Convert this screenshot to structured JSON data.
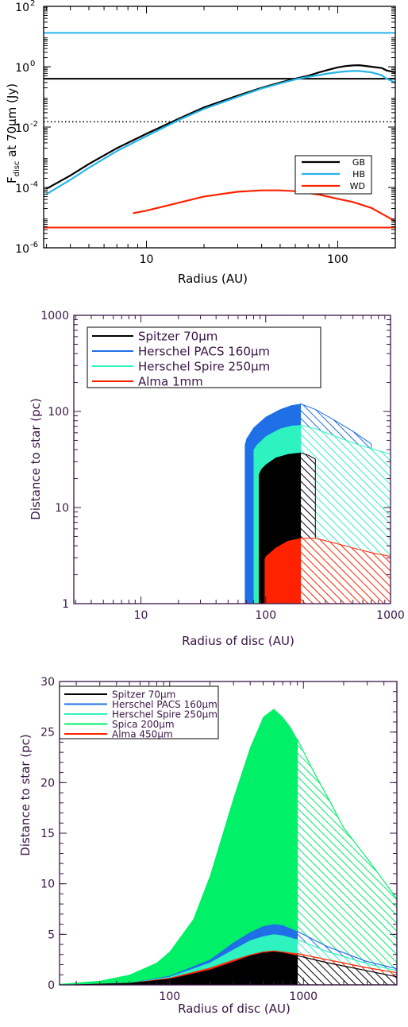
{
  "chart_data": [
    {
      "type": "line",
      "xlabel": "Radius (AU)",
      "ylabel_prefix": "F",
      "ylabel_sub": "disc",
      "ylabel_suffix": " at 70μm (Jy)",
      "xscale": "log",
      "yscale": "log",
      "xlim": [
        2.9,
        200
      ],
      "ylim": [
        1e-06,
        100
      ],
      "x_ticks": [
        {
          "v": 10,
          "label": "10"
        },
        {
          "v": 100,
          "label": "100"
        }
      ],
      "y_ticks": [
        {
          "v": 1e-06,
          "base": "10",
          "exp": "-6"
        },
        {
          "v": 0.0001,
          "base": "10",
          "exp": "-4"
        },
        {
          "v": 0.01,
          "base": "10",
          "exp": "-2"
        },
        {
          "v": 1,
          "base": "10",
          "exp": "0"
        },
        {
          "v": 100,
          "base": "10",
          "exp": "2"
        }
      ],
      "legend_position": "lower-right",
      "series": [
        {
          "name": "GB",
          "color": "#000000",
          "x": [
            3,
            4,
            5,
            7,
            10,
            15,
            20,
            30,
            40,
            50,
            60,
            70,
            80,
            90,
            100,
            110,
            120,
            130,
            150,
            170,
            180,
            200
          ],
          "y": [
            9e-05,
            0.00025,
            0.0006,
            0.002,
            0.006,
            0.02,
            0.045,
            0.11,
            0.2,
            0.3,
            0.4,
            0.5,
            0.65,
            0.8,
            0.95,
            1.05,
            1.1,
            1.12,
            1.0,
            0.9,
            0.75,
            0.65
          ]
        },
        {
          "name": "HB",
          "color": "#27b4e8",
          "x": [
            3,
            4,
            5,
            7,
            10,
            15,
            20,
            30,
            40,
            50,
            60,
            70,
            80,
            90,
            100,
            110,
            120,
            130,
            150,
            170,
            180,
            200
          ],
          "y": [
            6e-05,
            0.00018,
            0.00045,
            0.0016,
            0.005,
            0.018,
            0.04,
            0.1,
            0.19,
            0.28,
            0.38,
            0.46,
            0.53,
            0.6,
            0.66,
            0.7,
            0.72,
            0.72,
            0.65,
            0.52,
            0.4,
            0.3
          ]
        },
        {
          "name": "WD",
          "color": "#ff2200",
          "x": [
            8.5,
            10,
            15,
            20,
            30,
            40,
            50,
            60,
            80,
            100,
            120,
            150,
            180,
            200
          ],
          "y": [
            1.4e-05,
            1.7e-05,
            3.2e-05,
            5e-05,
            7.2e-05,
            8e-05,
            8e-05,
            7.5e-05,
            5.8e-05,
            4.2e-05,
            3.3e-05,
            2.1e-05,
            1.1e-05,
            7.5e-06
          ]
        }
      ],
      "hlines": [
        {
          "y": 13.2,
          "color": "#27b4e8",
          "style": "solid"
        },
        {
          "y": 0.4,
          "color": "#000000",
          "style": "solid"
        },
        {
          "y": 0.015,
          "color": "#000000",
          "style": "dotted"
        },
        {
          "y": 4.7e-06,
          "color": "#ff2200",
          "style": "solid"
        }
      ]
    },
    {
      "type": "area",
      "xlabel": "Radius of disc (AU)",
      "ylabel": "Distance to star (pc)",
      "xscale": "log",
      "yscale": "log",
      "xlim": [
        2.9,
        1000
      ],
      "ylim": [
        1,
        1000
      ],
      "x_ticks": [
        {
          "v": 10,
          "label": "10"
        },
        {
          "v": 100,
          "label": "100"
        },
        {
          "v": 1000,
          "label": "1000"
        }
      ],
      "y_ticks": [
        {
          "v": 1,
          "label": "1"
        },
        {
          "v": 10,
          "label": "10"
        },
        {
          "v": 100,
          "label": "100"
        },
        {
          "v": 1000,
          "label": "1000"
        }
      ],
      "hatch_from_x": 190,
      "legend_position": "top-left",
      "series": [
        {
          "name": "Herschel PACS 160μm",
          "label": "Herschel PACS 160",
          "unit": "μm",
          "color": "#1f6fe6",
          "x": [
            68,
            70,
            80,
            100,
            130,
            160,
            190,
            250,
            350,
            500,
            700
          ],
          "y": [
            45,
            52,
            68,
            88,
            105,
            116,
            120,
            105,
            82,
            62,
            46
          ]
        },
        {
          "name": "Herschel Spire 250μm",
          "label": "Herschel Spire 250",
          "unit": "μm",
          "color": "#2ef2c0",
          "x": [
            80,
            85,
            100,
            130,
            160,
            190,
            250,
            350,
            500,
            700,
            1000
          ],
          "y": [
            40,
            45,
            55,
            66,
            71,
            72,
            66,
            56,
            47,
            41,
            36
          ]
        },
        {
          "name": "Spitzer 70μm",
          "label": "Spitzer 70",
          "unit": "μm",
          "color": "#000000",
          "x": [
            88,
            92,
            100,
            120,
            150,
            180,
            190,
            220,
            250
          ],
          "y": [
            22,
            25,
            28,
            33,
            36,
            37,
            37,
            35,
            32
          ]
        },
        {
          "name": "Alma 1mm",
          "label": "Alma 1mm",
          "unit": "",
          "color": "#ff2200",
          "x": [
            98,
            100,
            120,
            150,
            190,
            250,
            350,
            500,
            700,
            1000
          ],
          "y": [
            2.9,
            3.1,
            3.8,
            4.5,
            4.8,
            4.8,
            4.3,
            3.8,
            3.4,
            3.1
          ]
        }
      ]
    },
    {
      "type": "area",
      "xlabel": "Radius of disc (AU)",
      "ylabel": "Distance to star (pc)",
      "xscale": "log",
      "yscale": "linear",
      "xlim": [
        15,
        5000
      ],
      "ylim": [
        0,
        30
      ],
      "x_ticks": [
        {
          "v": 100,
          "label": "100"
        },
        {
          "v": 1000,
          "label": "1000"
        }
      ],
      "y_ticks": [
        {
          "v": 0,
          "label": "0"
        },
        {
          "v": 5,
          "label": "5"
        },
        {
          "v": 10,
          "label": "10"
        },
        {
          "v": 15,
          "label": "15"
        },
        {
          "v": 20,
          "label": "20"
        },
        {
          "v": 25,
          "label": "25"
        },
        {
          "v": 30,
          "label": "30"
        }
      ],
      "hatch_from_x": 900,
      "legend_position": "top-left",
      "series": [
        {
          "name": "Spica 200μm",
          "label": "Spica 200",
          "unit": "μm",
          "color": "#00f068",
          "x": [
            15,
            30,
            50,
            80,
            100,
            150,
            200,
            300,
            400,
            500,
            600,
            700,
            800,
            900,
            1200,
            1600,
            2000,
            3000,
            5000
          ],
          "y": [
            0.1,
            0.4,
            1.0,
            2.2,
            3.3,
            6.5,
            10.8,
            18.5,
            23.5,
            26.5,
            27.3,
            26.5,
            25.5,
            24.3,
            21,
            18,
            15.5,
            12.5,
            8.5
          ]
        },
        {
          "name": "Herschel PACS 160μm",
          "label": "Herschel PACS 160",
          "unit": "μm",
          "color": "#1f6fe6",
          "x": [
            15,
            50,
            100,
            200,
            300,
            400,
            500,
            600,
            700,
            900,
            1500,
            3000,
            5000
          ],
          "y": [
            0,
            0.2,
            0.9,
            2.5,
            4.2,
            5.2,
            5.8,
            6.0,
            5.9,
            5.3,
            3.8,
            2.3,
            1.6
          ]
        },
        {
          "name": "Herschel Spire 250μm",
          "label": "Herschel Spire 250",
          "unit": "μm",
          "color": "#2ef2c0",
          "x": [
            15,
            50,
            100,
            200,
            300,
            400,
            500,
            600,
            700,
            900,
            1500,
            3000,
            5000
          ],
          "y": [
            0,
            0.2,
            0.8,
            2.2,
            3.5,
            4.4,
            4.8,
            5.0,
            4.9,
            4.5,
            3.3,
            2.1,
            1.4
          ]
        },
        {
          "name": "Alma 450μm",
          "label": "Alma 450",
          "unit": "μm",
          "color": "#ff2200",
          "x": [
            15,
            50,
            100,
            200,
            300,
            400,
            500,
            600,
            700,
            900,
            1500,
            3000,
            5000
          ],
          "y": [
            0,
            0.2,
            0.7,
            1.7,
            2.5,
            3.0,
            3.3,
            3.4,
            3.3,
            3.1,
            2.5,
            1.7,
            1.2
          ]
        },
        {
          "name": "Spitzer 70μm",
          "label": "Spitzer 70",
          "unit": "μm",
          "color": "#000000",
          "x": [
            15,
            50,
            100,
            200,
            300,
            400,
            500,
            600,
            700,
            900,
            1500,
            3000,
            5000
          ],
          "y": [
            0,
            0.2,
            0.6,
            1.5,
            2.3,
            2.9,
            3.2,
            3.3,
            3.2,
            2.9,
            2.2,
            1.4,
            0.8
          ]
        }
      ]
    }
  ]
}
